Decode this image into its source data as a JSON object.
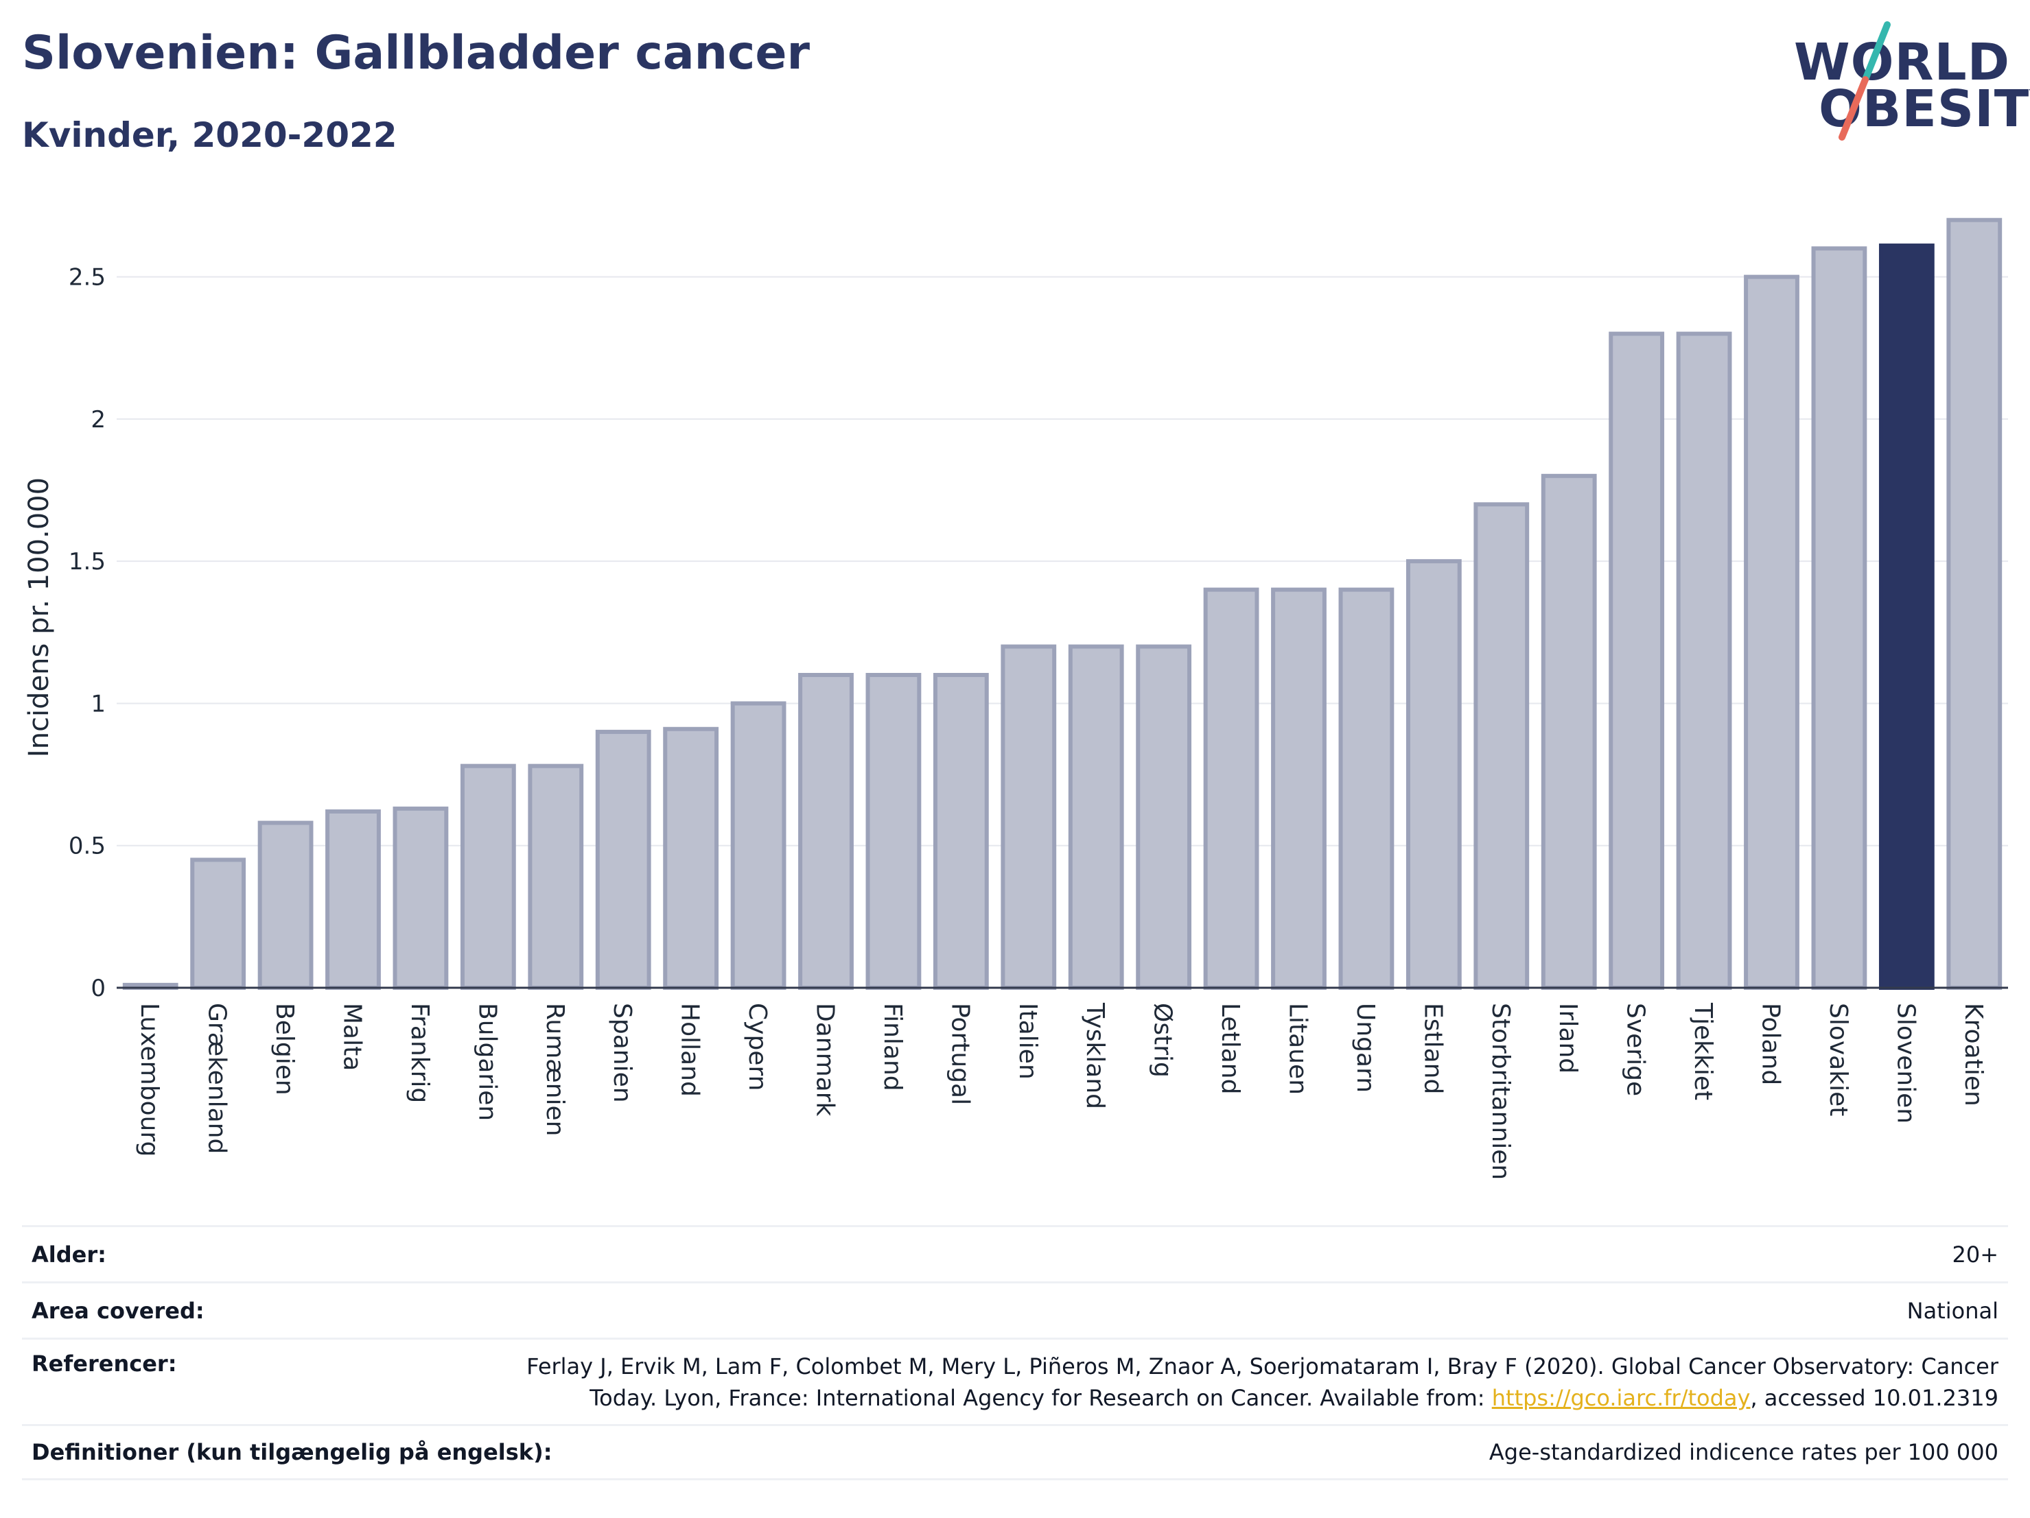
{
  "header": {
    "title": "Slovenien: Gallbladder cancer",
    "subtitle": "Kvinder, 2020-2022"
  },
  "logo": {
    "line1": "WORLD",
    "line2": "OBESITY",
    "colors": {
      "text": "#2a3562",
      "slash_top": "#35b7ae",
      "slash_bottom": "#e86a5a"
    }
  },
  "chart_data": {
    "type": "bar",
    "ylabel": "Incidens pr. 100.000",
    "ylim": [
      0,
      2.75
    ],
    "yticks": [
      0,
      0.5,
      1,
      1.5,
      2,
      2.5
    ],
    "ytick_labels": [
      "0",
      "0.5",
      "1",
      "1.5",
      "2",
      "2.5"
    ],
    "grid": true,
    "highlight": "Slovenien",
    "colors": {
      "bar": "#bcc0cf",
      "bar_stroke": "#9ca2b9",
      "highlight": "#2a3562"
    },
    "categories": [
      "Luxembourg",
      "Grækenland",
      "Belgien",
      "Malta",
      "Frankrig",
      "Bulgarien",
      "Rumænien",
      "Spanien",
      "Holland",
      "Cypern",
      "Danmark",
      "Finland",
      "Portugal",
      "Italien",
      "Tyskland",
      "Østrig",
      "Letland",
      "Litauen",
      "Ungarn",
      "Estland",
      "Storbritannien",
      "Irland",
      "Sverige",
      "Tjekkiet",
      "Poland",
      "Slovakiet",
      "Slovenien",
      "Kroatien"
    ],
    "values": [
      0.01,
      0.45,
      0.58,
      0.62,
      0.63,
      0.78,
      0.78,
      0.9,
      0.91,
      1.0,
      1.1,
      1.1,
      1.1,
      1.2,
      1.2,
      1.2,
      1.4,
      1.4,
      1.4,
      1.5,
      1.7,
      1.8,
      2.3,
      2.3,
      2.5,
      2.6,
      2.61,
      2.7
    ]
  },
  "info": {
    "rows": [
      {
        "label": "Alder:",
        "value": "20+"
      },
      {
        "label": "Area covered:",
        "value": "National"
      },
      {
        "label": "Referencer:",
        "value_line1": "Ferlay J, Ervik M, Lam F, Colombet M, Mery L, Piñeros M, Znaor A, Soerjomataram I, Bray F (2020). Global Cancer Observatory: Cancer",
        "value_line2_pre": "Today. Lyon, France: International Agency for Research on Cancer. Available from: ",
        "link": "https://gco.iarc.fr/today",
        "value_line2_post": ", accessed 10.01.2319"
      },
      {
        "label": "Definitioner (kun tilgængelig på engelsk):",
        "value": "Age-standardized indicence rates per 100 000"
      }
    ]
  }
}
